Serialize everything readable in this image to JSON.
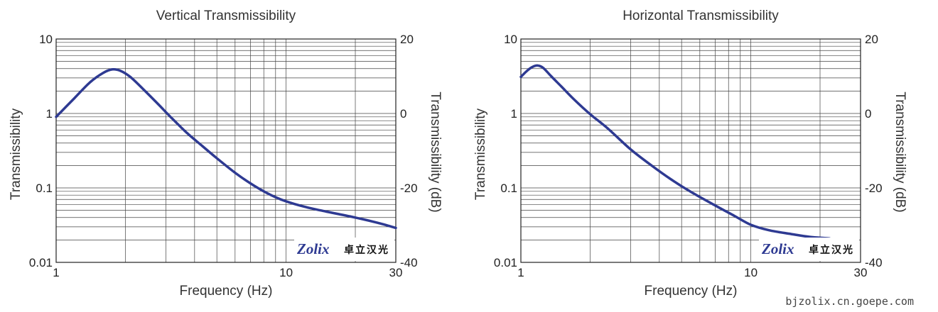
{
  "chart_data": [
    {
      "type": "line",
      "title": "Vertical Transmissibility",
      "xlabel": "Frequency (Hz)",
      "ylabel": "Transmissibility",
      "y2label": "Transmissibility (dB)",
      "xscale": "log",
      "yscale": "log",
      "xlim": [
        1,
        30
      ],
      "ylim": [
        0.01,
        10
      ],
      "y2lim": [
        -40,
        20
      ],
      "xticks": [
        "1",
        "10",
        "30"
      ],
      "yticks": [
        "0.01",
        "0.1",
        "1",
        "10"
      ],
      "y2ticks": [
        "-40",
        "-20",
        "0",
        "20"
      ],
      "grid": true,
      "series": [
        {
          "color": "#2e3a92",
          "x": [
            1,
            1.2,
            1.4,
            1.6,
            1.75,
            1.9,
            2.1,
            2.4,
            2.8,
            3.2,
            3.7,
            4.3,
            5,
            6,
            7,
            8,
            9,
            10,
            12,
            15,
            20,
            25,
            30
          ],
          "y": [
            0.9,
            1.6,
            2.6,
            3.5,
            3.9,
            3.75,
            3.1,
            2.1,
            1.3,
            0.85,
            0.55,
            0.37,
            0.25,
            0.16,
            0.115,
            0.09,
            0.075,
            0.066,
            0.056,
            0.048,
            0.04,
            0.034,
            0.029
          ]
        }
      ]
    },
    {
      "type": "line",
      "title": "Horizontal Transmissibility",
      "xlabel": "Frequency (Hz)",
      "ylabel": "Transmissibility",
      "y2label": "Transmissibility (dB)",
      "xscale": "log",
      "yscale": "log",
      "xlim": [
        1,
        30
      ],
      "ylim": [
        0.01,
        10
      ],
      "y2lim": [
        -40,
        20
      ],
      "xticks": [
        "1",
        "10",
        "30"
      ],
      "yticks": [
        "0.01",
        "0.1",
        "1",
        "10"
      ],
      "y2ticks": [
        "-40",
        "-20",
        "0",
        "20"
      ],
      "grid": true,
      "series": [
        {
          "color": "#2e3a92",
          "x": [
            1,
            1.06,
            1.12,
            1.18,
            1.25,
            1.35,
            1.5,
            1.7,
            2,
            2.4,
            3,
            3.7,
            4.5,
            5.5,
            7,
            8.5,
            10,
            12,
            15,
            18,
            22
          ],
          "y": [
            3.1,
            3.7,
            4.2,
            4.4,
            4.1,
            3.2,
            2.3,
            1.55,
            0.98,
            0.62,
            0.33,
            0.2,
            0.13,
            0.088,
            0.058,
            0.042,
            0.032,
            0.027,
            0.024,
            0.022,
            0.021
          ]
        }
      ]
    }
  ],
  "watermark": "bjzolix.cn.goepe.com",
  "logo": {
    "brand": "Zolix",
    "cn": "卓立汉光"
  }
}
